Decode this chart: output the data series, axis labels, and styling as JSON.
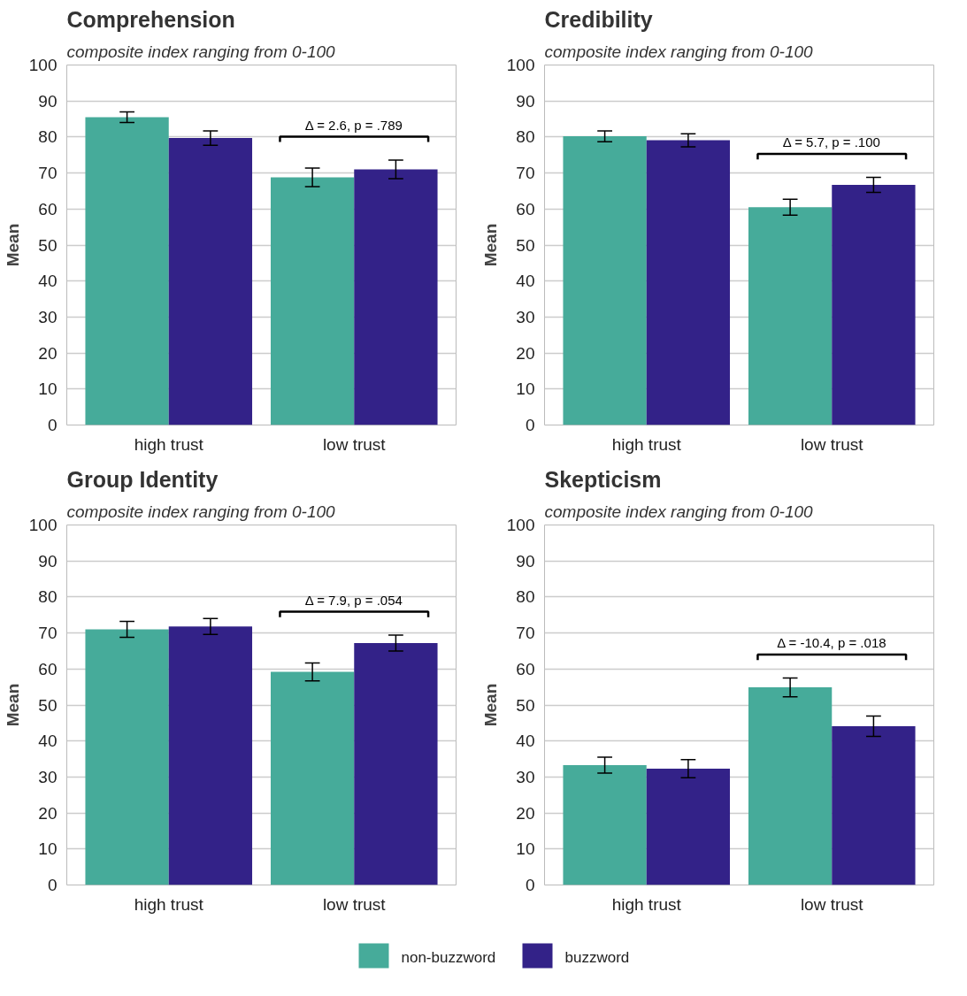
{
  "chart_data": [
    {
      "type": "bar",
      "title": "Comprehension",
      "subtitle": "composite index ranging from 0-100",
      "ylabel": "Mean",
      "categories": [
        "high trust",
        "low trust"
      ],
      "series": [
        {
          "name": "non-buzzword",
          "color": "#46ab9a",
          "values": [
            85.5,
            68.8
          ],
          "errors": [
            1.5,
            2.6
          ]
        },
        {
          "name": "buzzword",
          "color": "#332288",
          "values": [
            79.7,
            71.0
          ],
          "errors": [
            2.0,
            2.6
          ]
        }
      ],
      "ylim": [
        0,
        100
      ],
      "yticks": [
        0,
        10,
        20,
        30,
        40,
        50,
        60,
        70,
        80,
        90,
        100
      ],
      "grid": "y",
      "legend": "bottom",
      "annotations": [
        "Δ = 2.6, p = .789"
      ]
    },
    {
      "type": "bar",
      "title": "Credibility",
      "subtitle": "composite index ranging from 0-100",
      "ylabel": "Mean",
      "categories": [
        "high trust",
        "low trust"
      ],
      "series": [
        {
          "name": "non-buzzword",
          "color": "#46ab9a",
          "values": [
            80.2,
            60.5
          ],
          "errors": [
            1.5,
            2.2
          ]
        },
        {
          "name": "buzzword",
          "color": "#332288",
          "values": [
            79.1,
            66.7
          ],
          "errors": [
            1.8,
            2.1
          ]
        }
      ],
      "ylim": [
        0,
        100
      ],
      "yticks": [
        0,
        10,
        20,
        30,
        40,
        50,
        60,
        70,
        80,
        90,
        100
      ],
      "grid": "y",
      "legend": "bottom",
      "annotations": [
        "Δ = 5.7, p = .100"
      ]
    },
    {
      "type": "bar",
      "title": "Group Identity",
      "subtitle": "composite index ranging from 0-100",
      "ylabel": "Mean",
      "categories": [
        "high trust",
        "low trust"
      ],
      "series": [
        {
          "name": "non-buzzword",
          "color": "#46ab9a",
          "values": [
            71.0,
            59.2
          ],
          "errors": [
            2.2,
            2.5
          ]
        },
        {
          "name": "buzzword",
          "color": "#332288",
          "values": [
            71.8,
            67.2
          ],
          "errors": [
            2.2,
            2.2
          ]
        }
      ],
      "ylim": [
        0,
        100
      ],
      "yticks": [
        0,
        10,
        20,
        30,
        40,
        50,
        60,
        70,
        80,
        90,
        100
      ],
      "grid": "y",
      "legend": "bottom",
      "annotations": [
        "Δ = 7.9, p = .054"
      ]
    },
    {
      "type": "bar",
      "title": "Skepticism",
      "subtitle": "composite index ranging from 0-100",
      "ylabel": "Mean",
      "categories": [
        "high trust",
        "low trust"
      ],
      "series": [
        {
          "name": "non-buzzword",
          "color": "#46ab9a",
          "values": [
            33.3,
            54.9
          ],
          "errors": [
            2.2,
            2.6
          ]
        },
        {
          "name": "buzzword",
          "color": "#332288",
          "values": [
            32.3,
            44.1
          ],
          "errors": [
            2.5,
            2.8
          ]
        }
      ],
      "ylim": [
        0,
        100
      ],
      "yticks": [
        0,
        10,
        20,
        30,
        40,
        50,
        60,
        70,
        80,
        90,
        100
      ],
      "grid": "y",
      "legend": "bottom",
      "annotations": [
        "Δ = -10.4, p = .018"
      ]
    }
  ]
}
